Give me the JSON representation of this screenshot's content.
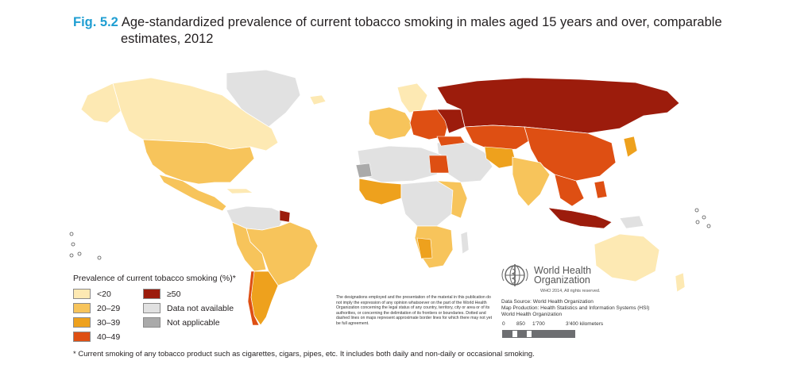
{
  "title": {
    "fig_label": "Fig. 5.2",
    "line1": "Age-standardized prevalence of current tobacco smoking in males aged 15 years and over, comparable",
    "line2": "estimates, 2012"
  },
  "legend": {
    "title": "Prevalence of current tobacco smoking (%)*",
    "items": [
      {
        "label": "<20",
        "color": "#fde9b3"
      },
      {
        "label": "20–29",
        "color": "#f7c45b"
      },
      {
        "label": "30–39",
        "color": "#eea11d"
      },
      {
        "label": "40–49",
        "color": "#de4f13"
      },
      {
        "label": "≥50",
        "color": "#9c1c0c"
      },
      {
        "label": "Data not available",
        "color": "#e1e1e1"
      },
      {
        "label": "Not applicable",
        "color": "#aaaaaa"
      }
    ]
  },
  "footnote": "* Current smoking of any tobacco product such as cigarettes, cigars, pipes, etc. It includes both daily and non-daily or occasional smoking.",
  "disclaimer": "The designations employed and the presentation of the material in this publication do not imply the expression of any opinion whatsoever on the part of the World Health Organization concerning the legal status of any country, territory, city or area or of its authorities, or concerning the delimitation of its frontiers or boundaries. Dotted and dashed lines on maps represent approximate border lines for which there may not yet be full agreement.",
  "who": {
    "name_line1": "World Health",
    "name_line2": "Organization",
    "rights": "WHO 2014, All rights reserved."
  },
  "data_source": {
    "line1": "Data Source: World Health Organization",
    "line2": "Map Production: Health Statistics and Information Systems (HSI)",
    "line3": "World Health Organization"
  },
  "scale": {
    "labels": [
      "0",
      "850",
      "1'700",
      "3'400 kilometers"
    ]
  }
}
